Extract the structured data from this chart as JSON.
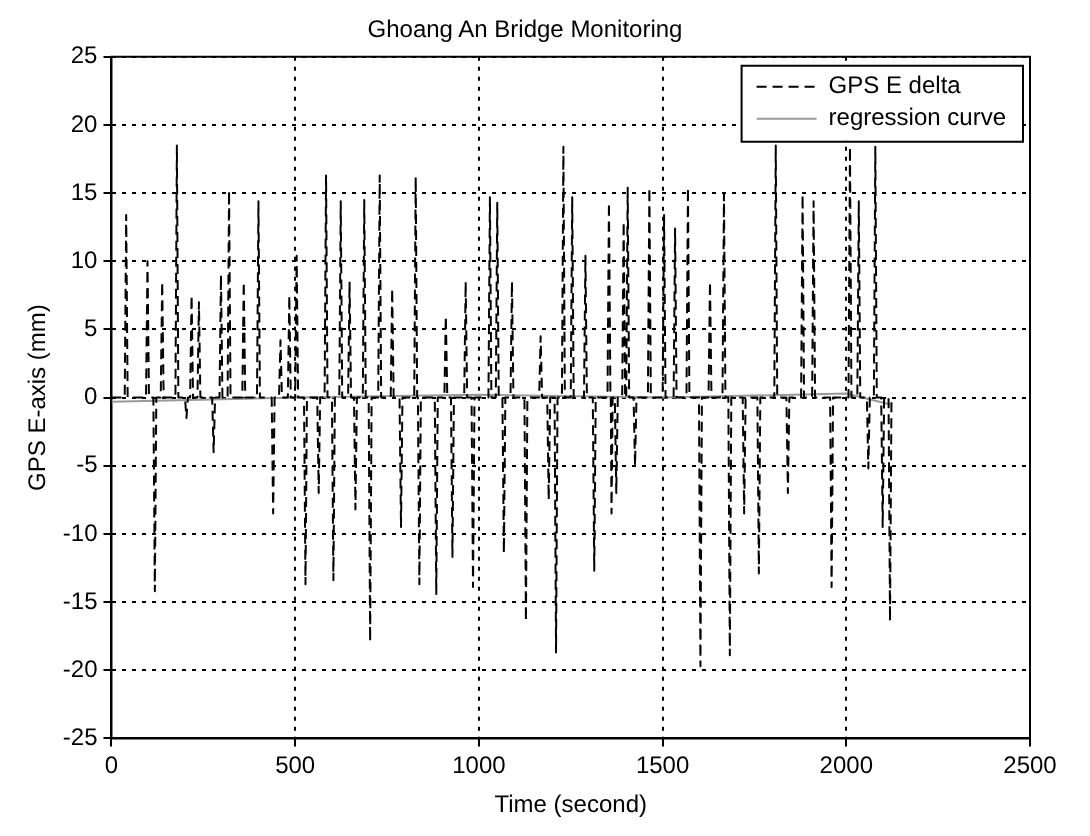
{
  "chart_data": {
    "type": "line",
    "title": "Ghoang An Bridge Monitoring",
    "xlabel": "Time (second)",
    "ylabel": "GPS E-axis (mm)",
    "xlim": [
      0,
      2500
    ],
    "xticks": [
      0,
      500,
      1000,
      1500,
      2000,
      2500
    ],
    "ylim": [
      -25,
      25
    ],
    "yticks": [
      -25,
      -20,
      -15,
      -10,
      -5,
      0,
      5,
      10,
      15,
      20,
      25
    ],
    "grid": true,
    "legend": "top right",
    "marker": "none",
    "series": [
      {
        "name": "GPS E delta",
        "color": "#000000",
        "line_style": "dashed",
        "x": [
          0,
          36,
          40,
          44,
          94,
          98,
          102,
          114,
          118,
          122,
          134,
          138,
          142,
          174,
          178,
          182,
          200,
          204,
          208,
          214,
          218,
          222,
          234,
          238,
          242,
          274,
          278,
          282,
          294,
          298,
          302,
          316,
          320,
          324,
          356,
          360,
          364,
          396,
          400,
          404,
          436,
          440,
          444,
          456,
          460,
          464,
          480,
          484,
          488,
          500,
          504,
          508,
          524,
          528,
          532,
          560,
          564,
          568,
          580,
          584,
          588,
          600,
          604,
          608,
          620,
          624,
          628,
          644,
          648,
          652,
          660,
          664,
          668,
          684,
          688,
          692,
          700,
          704,
          708,
          726,
          730,
          734,
          760,
          764,
          768,
          784,
          788,
          792,
          824,
          828,
          832,
          834,
          838,
          842,
          880,
          884,
          888,
          906,
          910,
          914,
          924,
          928,
          932,
          960,
          964,
          968,
          980,
          984,
          988,
          1026,
          1030,
          1034,
          1046,
          1050,
          1054,
          1064,
          1068,
          1072,
          1086,
          1090,
          1094,
          1124,
          1128,
          1132,
          1164,
          1168,
          1172,
          1186,
          1190,
          1194,
          1206,
          1210,
          1214,
          1226,
          1230,
          1234,
          1250,
          1254,
          1258,
          1286,
          1290,
          1294,
          1310,
          1314,
          1318,
          1350,
          1354,
          1358,
          1359,
          1361,
          1364,
          1370,
          1374,
          1378,
          1390,
          1394,
          1398,
          1401,
          1405,
          1409,
          1421,
          1425,
          1429,
          1460,
          1464,
          1468,
          1500,
          1504,
          1508,
          1530,
          1534,
          1538,
          1565,
          1569,
          1573,
          1599,
          1603,
          1607,
          1625,
          1629,
          1633,
          1663,
          1667,
          1671,
          1679,
          1683,
          1687,
          1718,
          1722,
          1726,
          1758,
          1762,
          1766,
          1804,
          1808,
          1812,
          1837,
          1841,
          1845,
          1877,
          1881,
          1885,
          1907,
          1911,
          1915,
          1956,
          1960,
          1964,
          2006,
          2010,
          2014,
          2030,
          2034,
          2038,
          2056,
          2060,
          2064,
          2075,
          2079,
          2083,
          2095,
          2099,
          2103,
          2115,
          2119,
          2123
        ],
        "values": [
          0,
          0,
          13.4,
          0,
          0,
          10,
          0,
          0,
          -14.2,
          0,
          0,
          8.5,
          0,
          0,
          18.5,
          0,
          0,
          -1.5,
          0,
          0,
          7.5,
          0,
          0,
          7,
          0,
          0,
          -4,
          0,
          0,
          9,
          0,
          0,
          15.2,
          0,
          0,
          8.5,
          0,
          0,
          14.4,
          0,
          0,
          -8.5,
          0,
          0,
          4.2,
          0,
          0,
          7.5,
          0,
          0,
          10.4,
          0,
          0,
          -13.7,
          0,
          0,
          -7,
          0,
          0,
          16.3,
          0,
          0,
          -13.4,
          0,
          0,
          14.4,
          0,
          0,
          8.5,
          0,
          0,
          -8.2,
          0,
          0,
          14.5,
          0,
          0,
          -17.9,
          0,
          0,
          16.3,
          0,
          0,
          8,
          0,
          0,
          -9.5,
          0,
          0,
          16.2,
          0,
          0,
          -13.7,
          0,
          0,
          -14.4,
          0,
          0,
          6,
          0,
          0,
          -11.7,
          0,
          0,
          8.5,
          0,
          0,
          -13.9,
          0,
          0,
          14.7,
          0,
          0,
          14.3,
          0,
          0,
          -11.4,
          0,
          0,
          8.5,
          0,
          0,
          -16.4,
          0,
          0,
          4.5,
          0,
          0,
          -7.5,
          0,
          0,
          -18.7,
          0,
          0,
          18.4,
          0,
          0,
          14.7,
          0,
          0,
          10.4,
          0,
          0,
          -12.7,
          0,
          0,
          14.3,
          0,
          0,
          -8.5,
          0,
          0,
          -7,
          0,
          0,
          12.9,
          0,
          0,
          15.4,
          0,
          0,
          -5,
          0,
          0,
          15.4,
          0,
          0,
          13.4,
          0,
          0,
          12.4,
          0,
          0,
          15.4,
          0,
          0,
          -19.7,
          0,
          0,
          8.5,
          0,
          0,
          14.9,
          0,
          0,
          -18.9,
          0,
          0,
          -8.5,
          0,
          0,
          -12.9,
          0,
          0,
          18.5,
          0,
          0,
          -7,
          0,
          0,
          14.9,
          0,
          0,
          14.4,
          0,
          0,
          -13.9,
          0,
          0,
          18.4,
          0,
          0,
          14.4,
          0,
          0,
          -5.2,
          0,
          0,
          18.4,
          0,
          0,
          -9.5,
          0,
          0,
          -16.4,
          0
        ]
      },
      {
        "name": "regression curve",
        "color": "#999999",
        "line_style": "solid",
        "x": [
          0,
          500,
          1000,
          1500,
          2000,
          2120
        ],
        "values": [
          -0.3,
          0,
          0.2,
          0,
          0.3,
          -0.5
        ]
      }
    ]
  }
}
